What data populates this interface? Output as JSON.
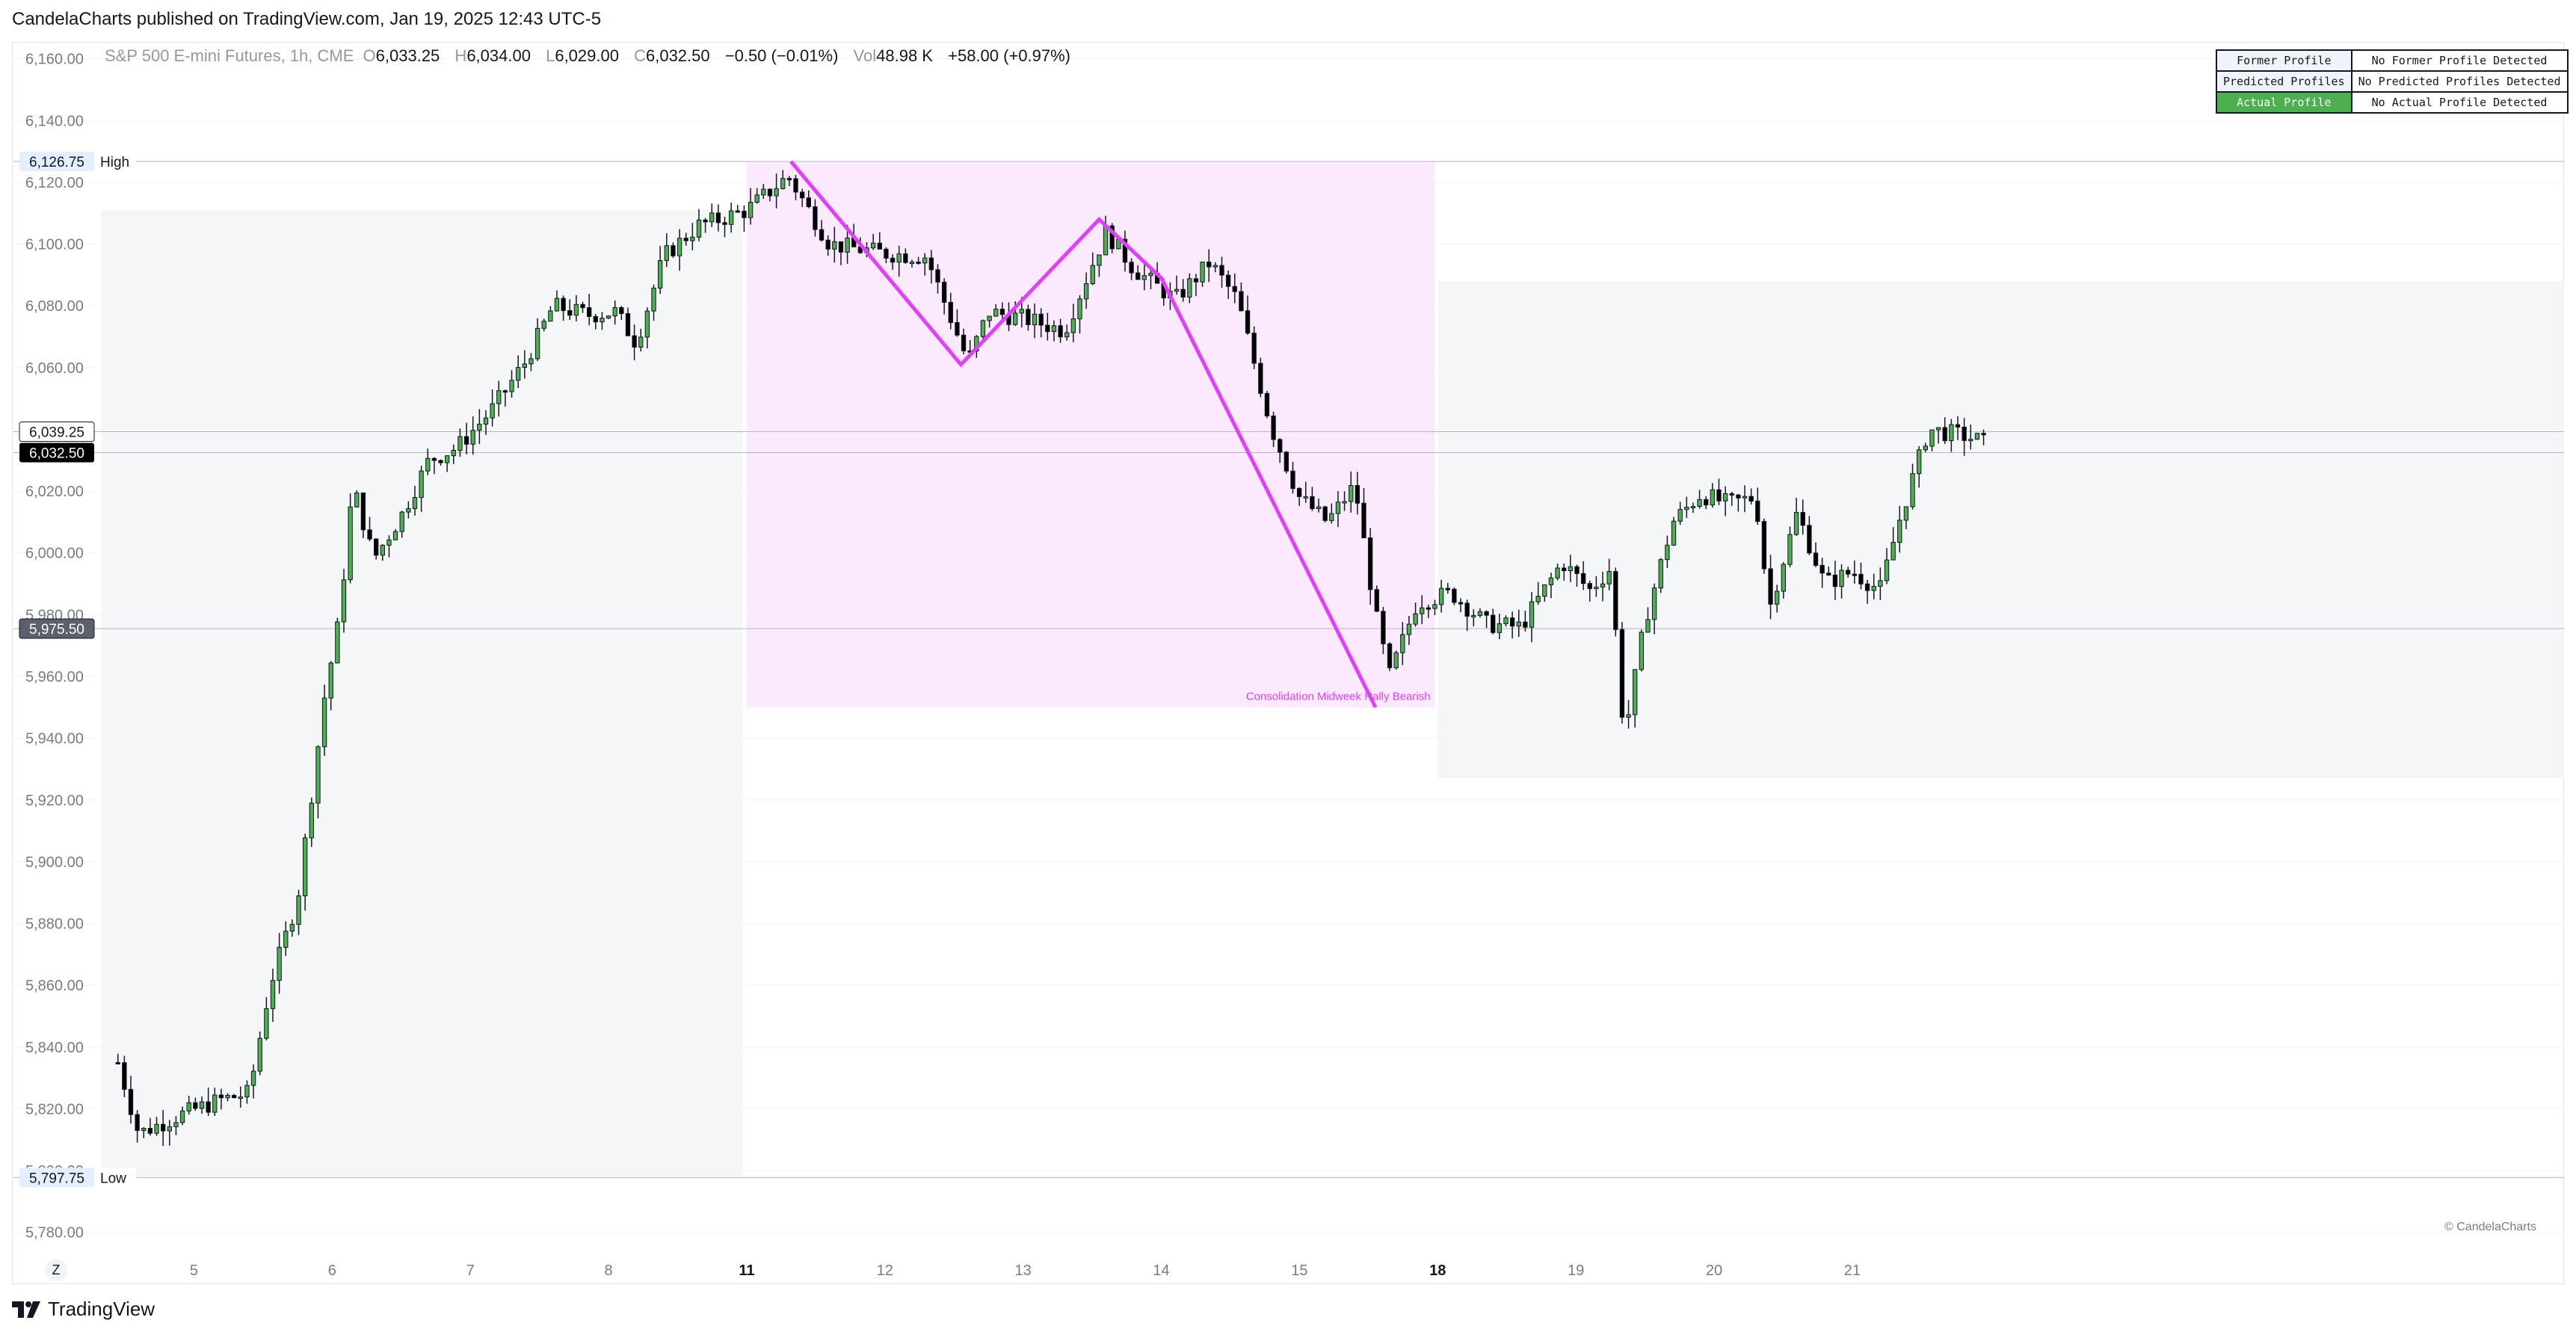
{
  "header": {
    "publisher_line": "CandelaCharts published on TradingView.com, Jan 19, 2025 12:43 UTC-5"
  },
  "footer": {
    "brand": "TradingView"
  },
  "legend": {
    "symbol": "S&P 500 E-mini Futures, 1h, CME",
    "open_label": "O",
    "open": "6,033.25",
    "high_label": "H",
    "high": "6,034.00",
    "low_label": "L",
    "low": "6,029.00",
    "close_label": "C",
    "close": "6,032.50",
    "change": "−0.50 (−0.01%)",
    "vol_label": "Vol",
    "vol": "48.98 K",
    "change_session": "+58.00 (+0.97%)"
  },
  "profile_table": {
    "rows": [
      {
        "key": "Former Profile",
        "value": "No Former Profile Detected",
        "active": false
      },
      {
        "key": "Predicted Profiles",
        "value": "No Predicted Profiles Detected",
        "active": false
      },
      {
        "key": "Actual Profile",
        "value": "No Actual Profile Detected",
        "active": true
      }
    ]
  },
  "copyright": "© CandelaCharts",
  "zoom_button": "Z",
  "colors": {
    "bull": "#4caf50",
    "bear": "#000000",
    "pattern_line": "#e040fb",
    "pattern_fill": "#fbe9fd",
    "session_fill": "#f5f6f8",
    "grid": "#f0f3fa",
    "axis_text": "#787b86"
  },
  "chart_data": {
    "type": "candlestick",
    "title": "S&P 500 E-mini Futures, 1h, CME",
    "ylim": [
      5770,
      6165
    ],
    "y_ticks": [
      5780,
      5800,
      5820,
      5840,
      5860,
      5880,
      5900,
      5920,
      5940,
      5960,
      5980,
      6000,
      6020,
      6040,
      6060,
      6080,
      6100,
      6120,
      6140,
      6160
    ],
    "y_tick_labels": [
      "5,780.00",
      "5,800.00",
      "5,820.00",
      "5,840.00",
      "5,860.00",
      "5,880.00",
      "5,900.00",
      "5,920.00",
      "5,940.00",
      "5,960.00",
      "5,980.00",
      "6,000.00",
      "6,020.00",
      "6,040.00",
      "6,060.00",
      "6,080.00",
      "6,100.00",
      "6,120.00",
      "6,140.00",
      "6,160.00"
    ],
    "x_range": [
      4.3,
      22.15
    ],
    "x_ticks": [
      {
        "x": 5,
        "label": "5",
        "bold": false
      },
      {
        "x": 6,
        "label": "6",
        "bold": false
      },
      {
        "x": 7,
        "label": "7",
        "bold": false
      },
      {
        "x": 8,
        "label": "8",
        "bold": false
      },
      {
        "x": 9,
        "label": "11",
        "bold": true
      },
      {
        "x": 10,
        "label": "12",
        "bold": false
      },
      {
        "x": 11,
        "label": "13",
        "bold": false
      },
      {
        "x": 12,
        "label": "14",
        "bold": false
      },
      {
        "x": 13,
        "label": "15",
        "bold": false
      },
      {
        "x": 14,
        "label": "18",
        "bold": true
      },
      {
        "x": 15,
        "label": "19",
        "bold": false
      },
      {
        "x": 16,
        "label": "20",
        "bold": false
      },
      {
        "x": 17,
        "label": "21",
        "bold": false
      }
    ],
    "anchors": [
      [
        4.45,
        5835
      ],
      [
        4.6,
        5812
      ],
      [
        4.9,
        5818
      ],
      [
        5.2,
        5823
      ],
      [
        5.4,
        5825
      ],
      [
        5.55,
        5860
      ],
      [
        5.75,
        5888
      ],
      [
        5.95,
        5955
      ],
      [
        6.05,
        5978
      ],
      [
        6.15,
        6022
      ],
      [
        6.3,
        5998
      ],
      [
        6.5,
        6012
      ],
      [
        6.7,
        6030
      ],
      [
        6.9,
        6034
      ],
      [
        7.15,
        6046
      ],
      [
        7.4,
        6062
      ],
      [
        7.6,
        6080
      ],
      [
        7.85,
        6077
      ],
      [
        8.05,
        6078
      ],
      [
        8.2,
        6068
      ],
      [
        8.4,
        6096
      ],
      [
        8.65,
        6106
      ],
      [
        8.8,
        6108
      ],
      [
        9.0,
        6111
      ],
      [
        9.3,
        6122
      ],
      [
        9.6,
        6100
      ],
      [
        10.0,
        6097
      ],
      [
        10.3,
        6096
      ],
      [
        10.6,
        6062
      ],
      [
        10.75,
        6078
      ],
      [
        11.0,
        6076
      ],
      [
        11.3,
        6072
      ],
      [
        11.6,
        6104
      ],
      [
        11.8,
        6092
      ],
      [
        12.1,
        6082
      ],
      [
        12.35,
        6094
      ],
      [
        12.55,
        6082
      ],
      [
        12.8,
        6040
      ],
      [
        13.0,
        6018
      ],
      [
        13.2,
        6010
      ],
      [
        13.4,
        6022
      ],
      [
        13.55,
        5980
      ],
      [
        13.65,
        5960
      ],
      [
        13.85,
        5984
      ],
      [
        14.1,
        5987
      ],
      [
        14.35,
        5977
      ],
      [
        14.6,
        5976
      ],
      [
        14.9,
        5997
      ],
      [
        15.1,
        5988
      ],
      [
        15.25,
        5995
      ],
      [
        15.35,
        5940
      ],
      [
        15.5,
        5978
      ],
      [
        15.7,
        6010
      ],
      [
        15.9,
        6019
      ],
      [
        16.1,
        6016
      ],
      [
        16.3,
        6018
      ],
      [
        16.4,
        5982
      ],
      [
        16.6,
        6013
      ],
      [
        16.8,
        5990
      ],
      [
        17.0,
        5994
      ],
      [
        17.2,
        5988
      ],
      [
        17.35,
        6012
      ],
      [
        17.55,
        6040
      ],
      [
        17.8,
        6038
      ],
      [
        17.95,
        6036
      ]
    ],
    "candle_count": 290,
    "last_price": "6,032.50",
    "last_price_value": 6032.5,
    "labels": [
      {
        "price": 6126.75,
        "text": "6,126.75",
        "tag": "High"
      },
      {
        "price": 5797.75,
        "text": "5,797.75",
        "tag": "Low"
      },
      {
        "price": 6039.25,
        "text": "6,039.25"
      },
      {
        "price": 5975.5,
        "text": "5,975.50"
      }
    ],
    "sessions": [
      {
        "x0": 4.33,
        "x1": 8.97,
        "y0": 5798,
        "y1": 6111
      },
      {
        "x0": 14.0,
        "x1": 22.15,
        "y0": 5927,
        "y1": 6088
      }
    ],
    "pattern_box": {
      "x0": 9.0,
      "x1": 13.98,
      "y0": 5950,
      "y1": 6126.75,
      "label": "Consolidation Midweek Rally Bearish"
    },
    "pattern_path": [
      [
        9.32,
        6126.75
      ],
      [
        10.55,
        6061
      ],
      [
        11.55,
        6108
      ],
      [
        12.0,
        6089
      ],
      [
        13.55,
        5950
      ]
    ]
  }
}
